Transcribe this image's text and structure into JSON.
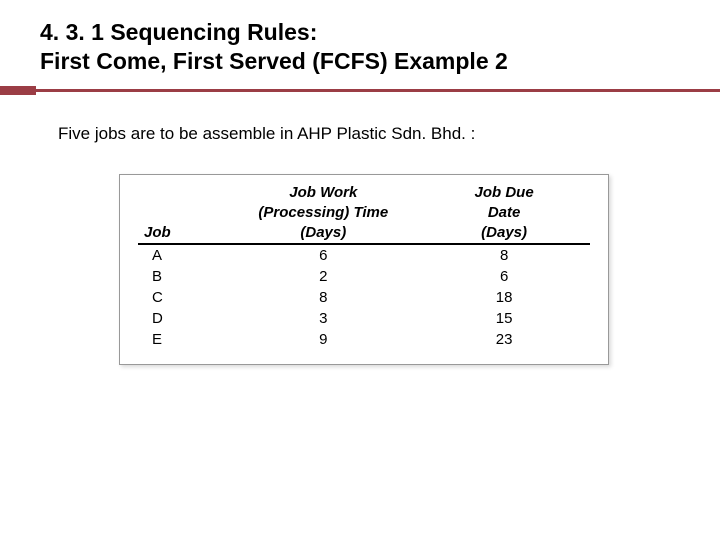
{
  "accent_color": "#9b3d45",
  "title": {
    "line1": "4. 3. 1 Sequencing Rules:",
    "line2": "First Come, First Served (FCFS) Example 2"
  },
  "body_text": "Five jobs are to be assemble in AHP Plastic Sdn. Bhd. :",
  "table": {
    "type": "table",
    "columns": {
      "job": {
        "l1": "",
        "l2": "",
        "l3": "Job",
        "align": "left"
      },
      "proc": {
        "l1": "Job Work",
        "l2": "(Processing) Time",
        "l3": "(Days)",
        "align": "center"
      },
      "due": {
        "l1": "Job Due",
        "l2": "Date",
        "l3": "(Days)",
        "align": "center"
      }
    },
    "rows": [
      {
        "job": "A",
        "proc": "6",
        "due": "8"
      },
      {
        "job": "B",
        "proc": "2",
        "due": "6"
      },
      {
        "job": "C",
        "proc": "8",
        "due": "18"
      },
      {
        "job": "D",
        "proc": "3",
        "due": "15"
      },
      {
        "job": "E",
        "proc": "9",
        "due": "23"
      }
    ],
    "border_color": "#999999",
    "header_rule_color": "#000000",
    "font_size": 15
  }
}
